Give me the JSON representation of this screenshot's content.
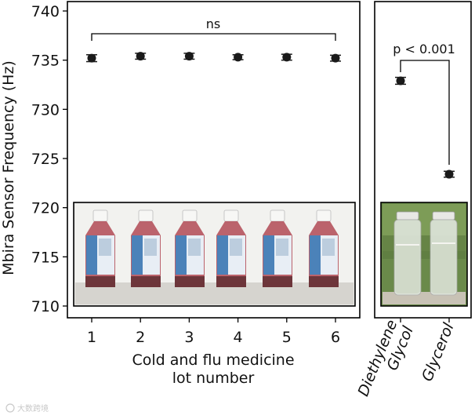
{
  "chart_data": [
    {
      "type": "scatter",
      "ylabel": "Mbira Sensor Frequency (Hz)",
      "xlabel_lines": [
        "Cold and flu medicine",
        "lot number"
      ],
      "categories": [
        "1",
        "2",
        "3",
        "4",
        "5",
        "6"
      ],
      "values": [
        735.2,
        735.4,
        735.4,
        735.3,
        735.3,
        735.2
      ],
      "errors": [
        0.35,
        0.3,
        0.3,
        0.25,
        0.3,
        0.3
      ],
      "ylim": [
        709,
        741
      ],
      "yticks": [
        710,
        715,
        720,
        725,
        730,
        735,
        740
      ],
      "annotation": "ns",
      "inset_image": "cold-and-flu-medicine-bottles-photo"
    },
    {
      "type": "scatter",
      "categories": [
        "Diethylene Glycol",
        "Glycerol"
      ],
      "category_lines": [
        [
          "Diethylene",
          "Glycol"
        ],
        [
          "Glycerol"
        ]
      ],
      "values": [
        732.9,
        723.4
      ],
      "errors": [
        0.35,
        0.3
      ],
      "ylim": [
        709,
        741
      ],
      "annotation": "p < 0.001",
      "inset_image": "diethylene-glycol-and-glycerol-vials-photo"
    }
  ],
  "watermark": "大数跨境",
  "colors": {
    "marker": "#1a1a1a",
    "axis": "#000000",
    "bottle_liquid": "#b24a55",
    "label_blue": "#2f6fae"
  }
}
